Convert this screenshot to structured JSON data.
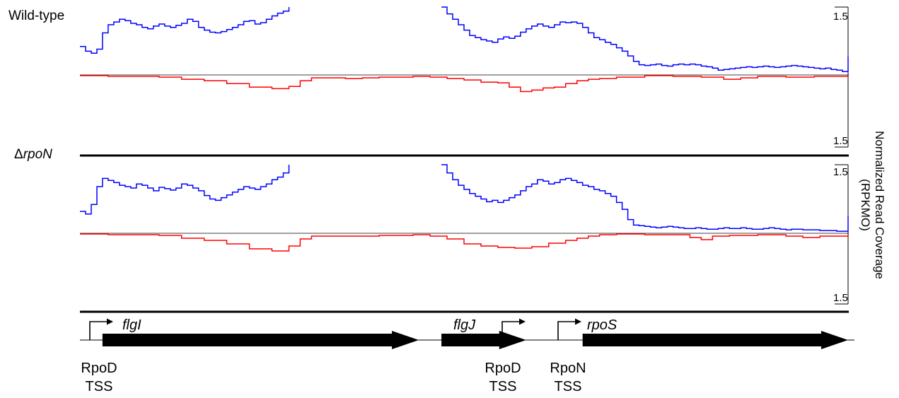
{
  "tracks": [
    {
      "name": "Wild-type",
      "scale_top": "1.5",
      "scale_bottom": "1.5",
      "plus_strand": [
        [
          0,
          0.42
        ],
        [
          1,
          0.35
        ],
        [
          2,
          0.32
        ],
        [
          3,
          0.38
        ],
        [
          4,
          0.62
        ],
        [
          5,
          0.74
        ],
        [
          6,
          0.78
        ],
        [
          7,
          0.82
        ],
        [
          8,
          0.8
        ],
        [
          9,
          0.76
        ],
        [
          10,
          0.74
        ],
        [
          11,
          0.7
        ],
        [
          12,
          0.68
        ],
        [
          13,
          0.72
        ],
        [
          14,
          0.75
        ],
        [
          15,
          0.72
        ],
        [
          16,
          0.7
        ],
        [
          17,
          0.73
        ],
        [
          18,
          0.76
        ],
        [
          19,
          0.82
        ],
        [
          20,
          0.79
        ],
        [
          21,
          0.7
        ],
        [
          22,
          0.66
        ],
        [
          23,
          0.63
        ],
        [
          24,
          0.62
        ],
        [
          25,
          0.64
        ],
        [
          26,
          0.67
        ],
        [
          27,
          0.7
        ],
        [
          28,
          0.74
        ],
        [
          29,
          0.79
        ],
        [
          30,
          0.8
        ],
        [
          31,
          0.75
        ],
        [
          32,
          0.77
        ],
        [
          33,
          0.82
        ],
        [
          34,
          0.87
        ],
        [
          35,
          0.91
        ],
        [
          36,
          0.94
        ],
        [
          37,
          1.0
        ],
        null,
        [
          64,
          1.0
        ],
        [
          65,
          0.9
        ],
        [
          66,
          0.82
        ],
        [
          67,
          0.74
        ],
        [
          68,
          0.66
        ],
        [
          69,
          0.58
        ],
        [
          70,
          0.55
        ],
        [
          71,
          0.52
        ],
        [
          72,
          0.5
        ],
        [
          73,
          0.48
        ],
        [
          74,
          0.53
        ],
        [
          75,
          0.56
        ],
        [
          76,
          0.54
        ],
        [
          77,
          0.57
        ],
        [
          78,
          0.63
        ],
        [
          79,
          0.68
        ],
        [
          80,
          0.72
        ],
        [
          81,
          0.75
        ],
        [
          82,
          0.72
        ],
        [
          83,
          0.7
        ],
        [
          84,
          0.74
        ],
        [
          85,
          0.78
        ],
        [
          86,
          0.77
        ],
        [
          87,
          0.78
        ],
        [
          88,
          0.76
        ],
        [
          89,
          0.7
        ],
        [
          90,
          0.62
        ],
        [
          91,
          0.55
        ],
        [
          92,
          0.52
        ],
        [
          93,
          0.48
        ],
        [
          94,
          0.45
        ],
        [
          95,
          0.4
        ],
        [
          96,
          0.35
        ],
        [
          97,
          0.28
        ],
        [
          98,
          0.2
        ],
        [
          99,
          0.15
        ],
        [
          100,
          0.14
        ],
        [
          101,
          0.15
        ],
        [
          102,
          0.16
        ],
        [
          103,
          0.14
        ],
        [
          104,
          0.13
        ],
        [
          105,
          0.15
        ],
        [
          106,
          0.16
        ],
        [
          107,
          0.15
        ],
        [
          108,
          0.16
        ],
        [
          109,
          0.15
        ],
        [
          110,
          0.13
        ],
        [
          111,
          0.12
        ],
        [
          112,
          0.1
        ],
        [
          113,
          0.07
        ],
        [
          114,
          0.08
        ],
        [
          115,
          0.09
        ],
        [
          116,
          0.1
        ],
        [
          117,
          0.11
        ],
        [
          118,
          0.12
        ],
        [
          119,
          0.11
        ],
        [
          120,
          0.12
        ],
        [
          121,
          0.13
        ],
        [
          122,
          0.12
        ],
        [
          123,
          0.11
        ],
        [
          124,
          0.12
        ],
        [
          125,
          0.13
        ],
        [
          126,
          0.14
        ],
        [
          127,
          0.13
        ],
        [
          128,
          0.12
        ],
        [
          129,
          0.11
        ],
        [
          130,
          0.1
        ],
        [
          131,
          0.09
        ],
        [
          132,
          0.1
        ],
        [
          133,
          0.08
        ],
        [
          134,
          0.07
        ],
        [
          135,
          0.05
        ],
        [
          136,
          0.27
        ]
      ],
      "minus_strand": [
        [
          0,
          0.01
        ],
        [
          5,
          0.02
        ],
        [
          10,
          0.02
        ],
        [
          14,
          0.03
        ],
        [
          18,
          0.06
        ],
        [
          22,
          0.08
        ],
        [
          26,
          0.12
        ],
        [
          30,
          0.17
        ],
        [
          34,
          0.19
        ],
        [
          37,
          0.16
        ],
        [
          39,
          0.08
        ],
        [
          41,
          0.04
        ],
        [
          44,
          0.04
        ],
        [
          47,
          0.05
        ],
        [
          50,
          0.04
        ],
        [
          53,
          0.03
        ],
        [
          56,
          0.03
        ],
        [
          59,
          0.02
        ],
        [
          62,
          0.03
        ],
        [
          65,
          0.05
        ],
        [
          68,
          0.07
        ],
        [
          71,
          0.1
        ],
        [
          74,
          0.11
        ],
        [
          76,
          0.17
        ],
        [
          78,
          0.23
        ],
        [
          80,
          0.21
        ],
        [
          82,
          0.18
        ],
        [
          84,
          0.17
        ],
        [
          86,
          0.12
        ],
        [
          88,
          0.08
        ],
        [
          90,
          0.06
        ],
        [
          92,
          0.05
        ],
        [
          95,
          0.03
        ],
        [
          100,
          0.01
        ],
        [
          105,
          0.02
        ],
        [
          110,
          0.03
        ],
        [
          114,
          0.06
        ],
        [
          117,
          0.04
        ],
        [
          120,
          0.02
        ],
        [
          125,
          0.03
        ],
        [
          130,
          0.02
        ],
        [
          136,
          0.01
        ]
      ]
    },
    {
      "name": "ΔrpoN",
      "name_prefix": "Δ",
      "name_italic": "rpoN",
      "scale_top": "1.5",
      "scale_bottom": "1.5",
      "plus_strand": [
        [
          0,
          0.32
        ],
        [
          1,
          0.28
        ],
        [
          2,
          0.42
        ],
        [
          3,
          0.68
        ],
        [
          4,
          0.8
        ],
        [
          5,
          0.77
        ],
        [
          6,
          0.74
        ],
        [
          7,
          0.7
        ],
        [
          8,
          0.68
        ],
        [
          9,
          0.66
        ],
        [
          10,
          0.72
        ],
        [
          11,
          0.7
        ],
        [
          12,
          0.66
        ],
        [
          13,
          0.62
        ],
        [
          14,
          0.67
        ],
        [
          15,
          0.65
        ],
        [
          16,
          0.63
        ],
        [
          17,
          0.66
        ],
        [
          18,
          0.72
        ],
        [
          19,
          0.7
        ],
        [
          20,
          0.66
        ],
        [
          21,
          0.62
        ],
        [
          22,
          0.55
        ],
        [
          23,
          0.5
        ],
        [
          24,
          0.48
        ],
        [
          25,
          0.52
        ],
        [
          26,
          0.56
        ],
        [
          27,
          0.6
        ],
        [
          28,
          0.64
        ],
        [
          29,
          0.68
        ],
        [
          30,
          0.66
        ],
        [
          31,
          0.64
        ],
        [
          32,
          0.68
        ],
        [
          33,
          0.72
        ],
        [
          34,
          0.78
        ],
        [
          35,
          0.82
        ],
        [
          36,
          0.88
        ],
        [
          37,
          1.0
        ],
        null,
        [
          64,
          1.0
        ],
        [
          65,
          0.88
        ],
        [
          66,
          0.78
        ],
        [
          67,
          0.7
        ],
        [
          68,
          0.64
        ],
        [
          69,
          0.58
        ],
        [
          70,
          0.54
        ],
        [
          71,
          0.5
        ],
        [
          72,
          0.46
        ],
        [
          73,
          0.48
        ],
        [
          74,
          0.45
        ],
        [
          75,
          0.48
        ],
        [
          76,
          0.52
        ],
        [
          77,
          0.56
        ],
        [
          78,
          0.62
        ],
        [
          79,
          0.68
        ],
        [
          80,
          0.72
        ],
        [
          81,
          0.78
        ],
        [
          82,
          0.76
        ],
        [
          83,
          0.72
        ],
        [
          84,
          0.74
        ],
        [
          85,
          0.78
        ],
        [
          86,
          0.8
        ],
        [
          87,
          0.77
        ],
        [
          88,
          0.74
        ],
        [
          89,
          0.7
        ],
        [
          90,
          0.68
        ],
        [
          91,
          0.64
        ],
        [
          92,
          0.62
        ],
        [
          93,
          0.58
        ],
        [
          94,
          0.54
        ],
        [
          95,
          0.45
        ],
        [
          96,
          0.35
        ],
        [
          97,
          0.2
        ],
        [
          98,
          0.12
        ],
        [
          99,
          0.11
        ],
        [
          100,
          0.1
        ],
        [
          101,
          0.09
        ],
        [
          102,
          0.08
        ],
        [
          103,
          0.09
        ],
        [
          104,
          0.1
        ],
        [
          105,
          0.09
        ],
        [
          106,
          0.08
        ],
        [
          107,
          0.07
        ],
        [
          108,
          0.07
        ],
        [
          109,
          0.08
        ],
        [
          110,
          0.07
        ],
        [
          111,
          0.06
        ],
        [
          112,
          0.06
        ],
        [
          113,
          0.07
        ],
        [
          114,
          0.08
        ],
        [
          115,
          0.07
        ],
        [
          116,
          0.07
        ],
        [
          117,
          0.08
        ],
        [
          118,
          0.07
        ],
        [
          119,
          0.06
        ],
        [
          120,
          0.06
        ],
        [
          121,
          0.07
        ],
        [
          122,
          0.08
        ],
        [
          123,
          0.07
        ],
        [
          124,
          0.06
        ],
        [
          125,
          0.05
        ],
        [
          126,
          0.06
        ],
        [
          127,
          0.06
        ],
        [
          128,
          0.05
        ],
        [
          129,
          0.05
        ],
        [
          130,
          0.05
        ],
        [
          131,
          0.04
        ],
        [
          132,
          0.04
        ],
        [
          133,
          0.04
        ],
        [
          134,
          0.03
        ],
        [
          135,
          0.03
        ],
        [
          136,
          0.25
        ]
      ],
      "minus_strand": [
        [
          0,
          0.01
        ],
        [
          5,
          0.02
        ],
        [
          10,
          0.02
        ],
        [
          14,
          0.03
        ],
        [
          18,
          0.07
        ],
        [
          22,
          0.1
        ],
        [
          26,
          0.15
        ],
        [
          30,
          0.22
        ],
        [
          34,
          0.25
        ],
        [
          37,
          0.18
        ],
        [
          39,
          0.08
        ],
        [
          41,
          0.04
        ],
        [
          44,
          0.04
        ],
        [
          47,
          0.04
        ],
        [
          50,
          0.04
        ],
        [
          53,
          0.03
        ],
        [
          56,
          0.03
        ],
        [
          59,
          0.02
        ],
        [
          62,
          0.04
        ],
        [
          65,
          0.08
        ],
        [
          68,
          0.15
        ],
        [
          71,
          0.18
        ],
        [
          74,
          0.2
        ],
        [
          77,
          0.21
        ],
        [
          80,
          0.19
        ],
        [
          83,
          0.14
        ],
        [
          86,
          0.1
        ],
        [
          88,
          0.07
        ],
        [
          90,
          0.04
        ],
        [
          92,
          0.02
        ],
        [
          95,
          0.01
        ],
        [
          100,
          0.02
        ],
        [
          105,
          0.02
        ],
        [
          108,
          0.06
        ],
        [
          110,
          0.09
        ],
        [
          112,
          0.04
        ],
        [
          115,
          0.03
        ],
        [
          120,
          0.02
        ],
        [
          125,
          0.04
        ],
        [
          128,
          0.06
        ],
        [
          131,
          0.04
        ],
        [
          136,
          0.01
        ]
      ]
    }
  ],
  "y_axis_title": [
    "Normalized Read Coverage",
    "(RPKMO)"
  ],
  "strand_colors": {
    "plus": "#0000ff",
    "minus": "#ff0000"
  },
  "genes": [
    {
      "name": "flgI",
      "start": 4,
      "end": 60
    },
    {
      "name": "flgJ",
      "start": 64,
      "end": 79
    },
    {
      "name": "rpoS",
      "start": 89,
      "end": 136
    }
  ],
  "promoters": [
    {
      "position": 2,
      "label_1": "RpoD",
      "label_2": "TSS"
    },
    {
      "position": 77,
      "label_1": "RpoD",
      "label_2": "TSS"
    },
    {
      "position": 86,
      "label_1": "RpoN",
      "label_2": "TSS"
    }
  ]
}
